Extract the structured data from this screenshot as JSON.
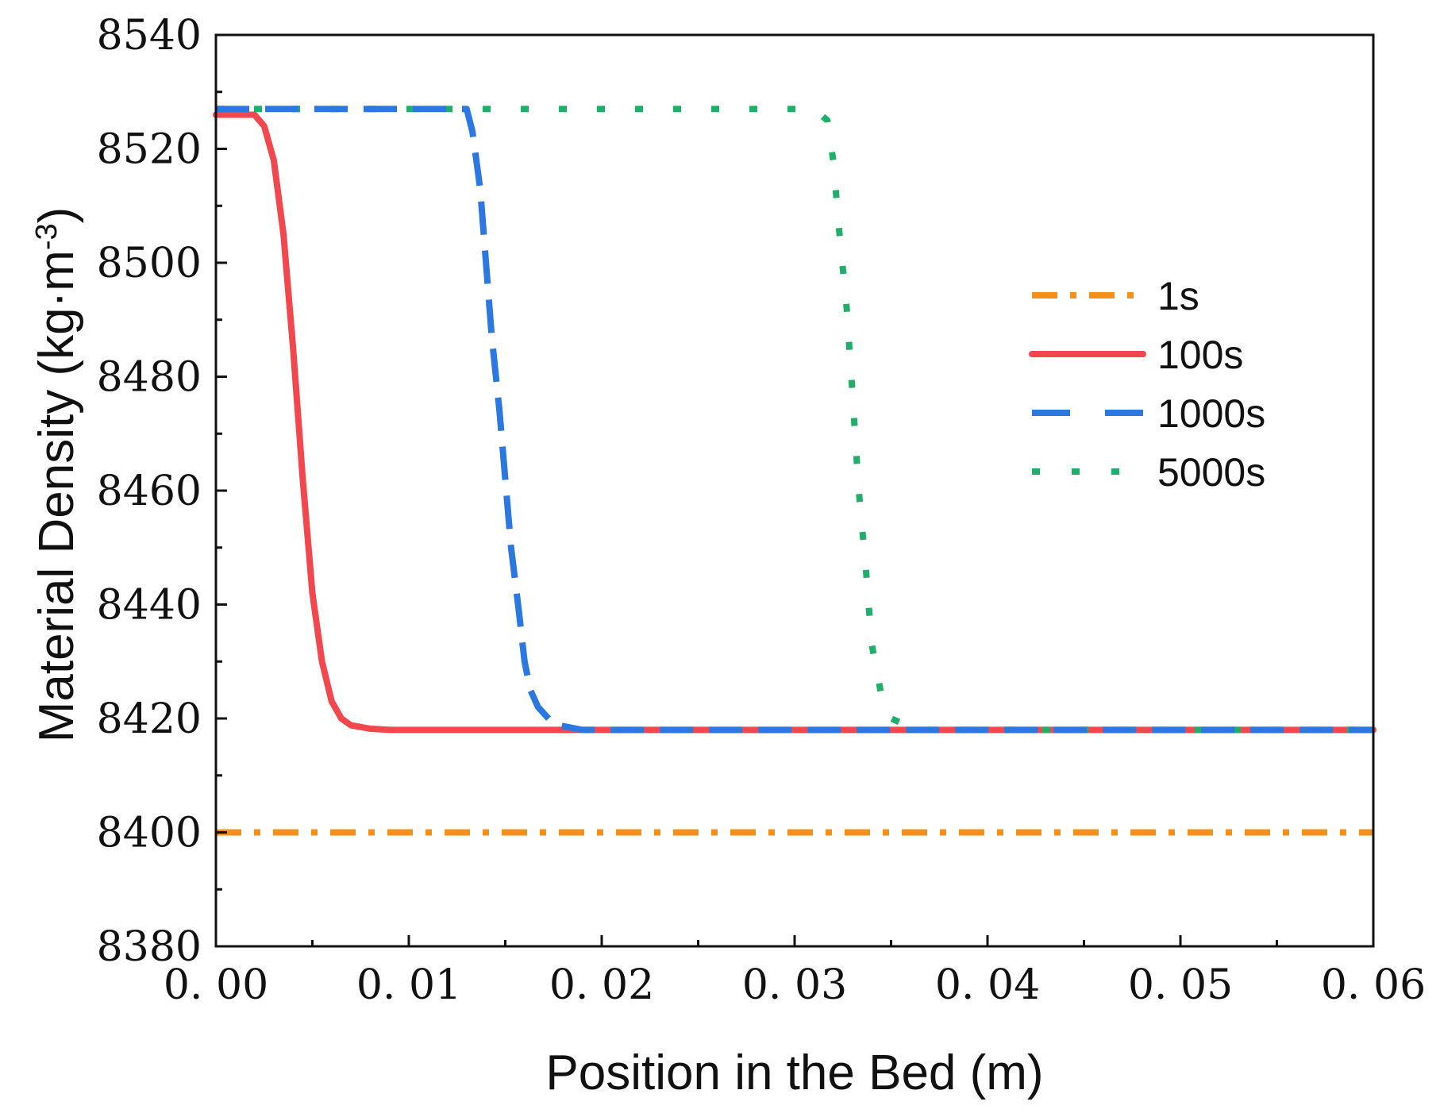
{
  "chart_data": {
    "type": "line",
    "xlabel": "Position in the Bed (m)",
    "ylabel": "Material Density (kg·m",
    "ylabel_superscript": "-3",
    "ylabel_close": ")",
    "xlim": [
      0.0,
      0.06
    ],
    "ylim": [
      8380,
      8540
    ],
    "x_ticks": [
      0.0,
      0.01,
      0.02,
      0.03,
      0.04,
      0.05,
      0.06
    ],
    "x_tick_labels": [
      "0. 00",
      "0. 01",
      "0. 02",
      "0. 03",
      "0. 04",
      "0. 05",
      "0. 06"
    ],
    "y_ticks": [
      8380,
      8400,
      8420,
      8440,
      8460,
      8480,
      8500,
      8520,
      8540
    ],
    "y_tick_labels": [
      "8380",
      "8400",
      "8420",
      "8440",
      "8460",
      "8480",
      "8500",
      "8520",
      "8540"
    ],
    "legend_position": "right",
    "series": [
      {
        "name": "1s",
        "color": "#F39019",
        "style": "dashdot",
        "x": [
          0.0,
          0.06
        ],
        "y": [
          8400,
          8400
        ]
      },
      {
        "name": "100s",
        "color": "#F2474C",
        "style": "solid",
        "x": [
          0.0,
          0.002,
          0.0025,
          0.003,
          0.0035,
          0.004,
          0.0045,
          0.005,
          0.0055,
          0.006,
          0.0065,
          0.007,
          0.008,
          0.009,
          0.01,
          0.02,
          0.03,
          0.04,
          0.05,
          0.06
        ],
        "y": [
          8526,
          8526,
          8524,
          8518,
          8505,
          8485,
          8462,
          8442,
          8430,
          8423,
          8420,
          8418.8,
          8418.2,
          8418,
          8418,
          8418,
          8418,
          8418,
          8418,
          8418
        ]
      },
      {
        "name": "1000s",
        "color": "#2A78E0",
        "style": "dashed",
        "x": [
          0.0,
          0.013,
          0.0133,
          0.0137,
          0.014,
          0.0143,
          0.0147,
          0.015,
          0.0153,
          0.0157,
          0.016,
          0.0163,
          0.0167,
          0.0175,
          0.019,
          0.06
        ],
        "y": [
          8527,
          8527,
          8523,
          8513,
          8500,
          8487,
          8474,
          8462,
          8450,
          8439,
          8430,
          8425,
          8422,
          8419,
          8418,
          8418
        ]
      },
      {
        "name": "5000s",
        "color": "#1FAF6A",
        "style": "dotted",
        "x": [
          0.0,
          0.031,
          0.0317,
          0.032,
          0.0323,
          0.0327,
          0.033,
          0.0333,
          0.0337,
          0.034,
          0.0345,
          0.035,
          0.036,
          0.037,
          0.06
        ],
        "y": [
          8527,
          8527,
          8525,
          8518,
          8506,
          8492,
          8477,
          8461,
          8446,
          8433,
          8424,
          8420,
          8418.5,
          8418,
          8418
        ]
      }
    ]
  }
}
